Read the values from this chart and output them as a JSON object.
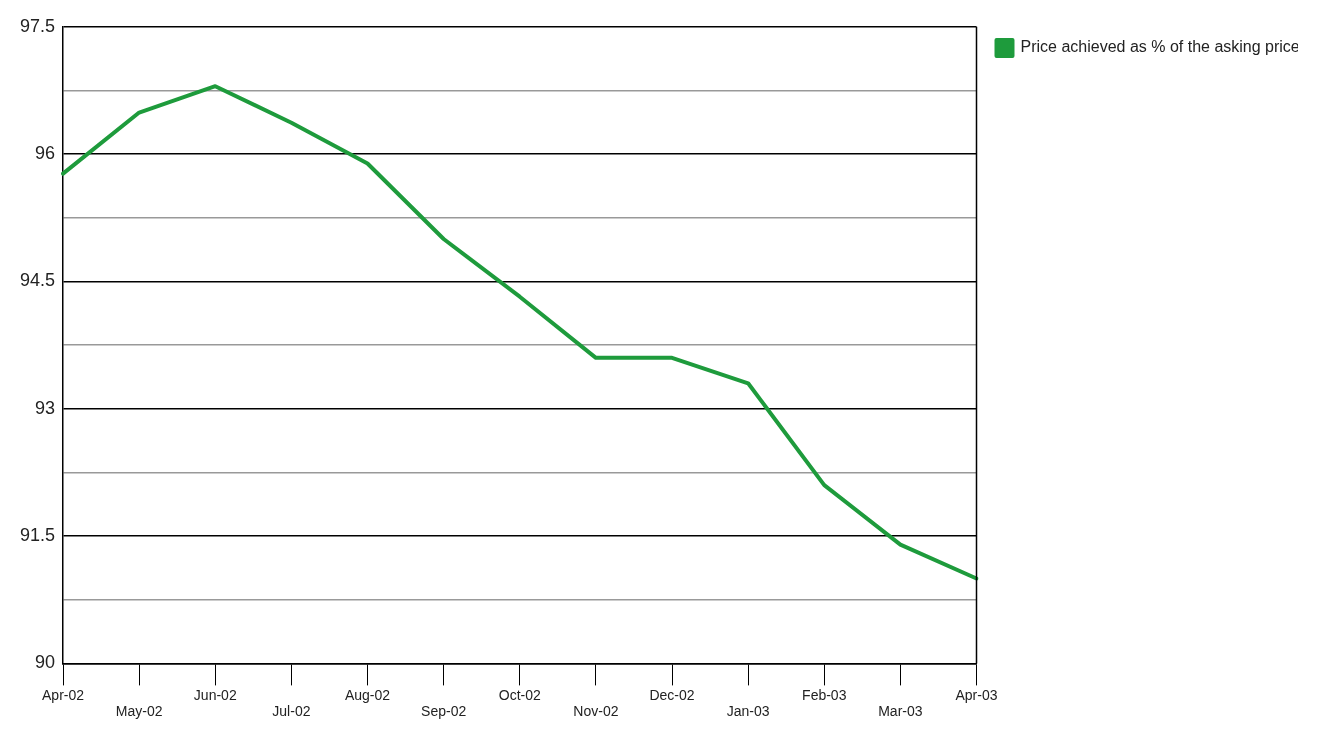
{
  "chart_data": {
    "type": "line",
    "categories": [
      "Apr-02",
      "May-02",
      "Jun-02",
      "Jul-02",
      "Aug-02",
      "Sep-02",
      "Oct-02",
      "Nov-02",
      "Dec-02",
      "Jan-03",
      "Feb-03",
      "Mar-03",
      "Apr-03"
    ],
    "series": [
      {
        "name": "Price achieved as % of the asking price",
        "color": "#1e9b3c",
        "values": [
          95.77,
          96.49,
          96.8,
          96.37,
          95.89,
          95.0,
          94.32,
          93.6,
          93.6,
          93.3,
          92.1,
          91.4,
          91.0
        ]
      }
    ],
    "ylim": [
      90,
      97.5
    ],
    "yticks": [
      90,
      {
        "value": 90.75,
        "label": null
      },
      91.5,
      {
        "value": 92.25,
        "label": null
      },
      93,
      {
        "value": 93.75,
        "label": null
      },
      94.5,
      {
        "value": 95.25,
        "label": null
      },
      96,
      {
        "value": 96.75,
        "label": null
      },
      97.5
    ],
    "grid": "y",
    "legend": "top right",
    "marker": "none",
    "line_style": "solid"
  }
}
